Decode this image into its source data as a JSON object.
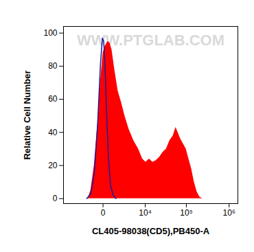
{
  "chart_data": {
    "type": "area",
    "x_label": "CL405-98038(CD5),PB450-A",
    "y_label": "Relative Cell Number",
    "annotations": [
      "WWW.PTGLAB.COM"
    ],
    "log": "x",
    "xlim": [
      -8500,
      1600000
    ],
    "xticks": [
      0,
      {
        "value": 10000,
        "label": "10⁴"
      },
      {
        "value": 100000,
        "label": "10⁵"
      },
      {
        "value": 1000000,
        "label": "10⁶"
      }
    ],
    "ylim": [
      -3,
      104
    ],
    "yticks": [
      0,
      20,
      40,
      60,
      80,
      100
    ],
    "grid": false,
    "series": [
      {
        "type": "area",
        "color": "#ff0000",
        "x": [
          -1430,
          -1080,
          -700,
          -390,
          -180,
          0,
          130,
          340,
          510,
          700,
          1000,
          1430,
          1950,
          2570,
          3480,
          4830,
          6580,
          8480,
          10400,
          12700,
          15500,
          18800,
          22800,
          27600,
          33400,
          40400,
          48600,
          56400,
          63100,
          73200,
          85000,
          98500,
          114000,
          132000,
          153000,
          178000,
          205000,
          238000
        ],
        "values": [
          0,
          5,
          20,
          45,
          70,
          88,
          92,
          95,
          94,
          90,
          78,
          65,
          58,
          50,
          42,
          35,
          30,
          24,
          22,
          24,
          22,
          23,
          25,
          28,
          30,
          35,
          38,
          43,
          40,
          36,
          33,
          30,
          24,
          18,
          10,
          4,
          1,
          0
        ]
      },
      {
        "type": "line",
        "color": "#1a1aa0",
        "x": [
          -1620,
          -1080,
          -700,
          -390,
          -180,
          -43,
          43,
          130,
          230,
          390,
          570,
          850,
          1160
        ],
        "values": [
          0,
          3,
          15,
          45,
          80,
          97,
          95,
          80,
          55,
          25,
          8,
          2,
          0
        ]
      }
    ]
  }
}
